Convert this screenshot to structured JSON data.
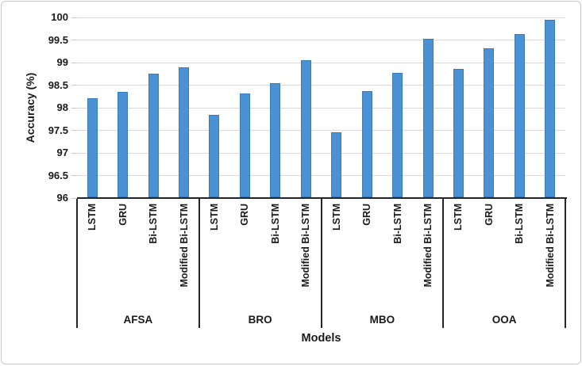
{
  "figure": {
    "background": "#FFFFFF",
    "border_color": "#C8C8C8"
  },
  "chart_data": {
    "type": "bar",
    "title": "",
    "ylabel": "Accuracy (%)",
    "xlabel": "Models",
    "ylim": [
      96,
      100
    ],
    "ytick_step": 0.5,
    "yticks": [
      "96",
      "96.5",
      "97",
      "97.5",
      "98",
      "98.5",
      "99",
      "99.5",
      "100"
    ],
    "grid": true,
    "legend": "none",
    "categories": [
      "LSTM",
      "GRU",
      "Bi-LSTM",
      "Modified Bi-LSTM"
    ],
    "groups": [
      {
        "label": "AFSA",
        "values": [
          98.21,
          98.35,
          98.76,
          98.89
        ]
      },
      {
        "label": "BRO",
        "values": [
          97.84,
          98.32,
          98.54,
          99.06
        ]
      },
      {
        "label": "MBO",
        "values": [
          97.45,
          98.36,
          98.78,
          99.52
        ]
      },
      {
        "label": "OOA",
        "values": [
          98.86,
          99.32,
          99.64,
          99.95
        ]
      }
    ],
    "colors": {
      "bar_fill": "#4B92D5",
      "bar_border": "#3D7AB8",
      "gridline": "#D9D9D9",
      "axis_line": "#262626",
      "text": "#1A1A1A"
    }
  }
}
